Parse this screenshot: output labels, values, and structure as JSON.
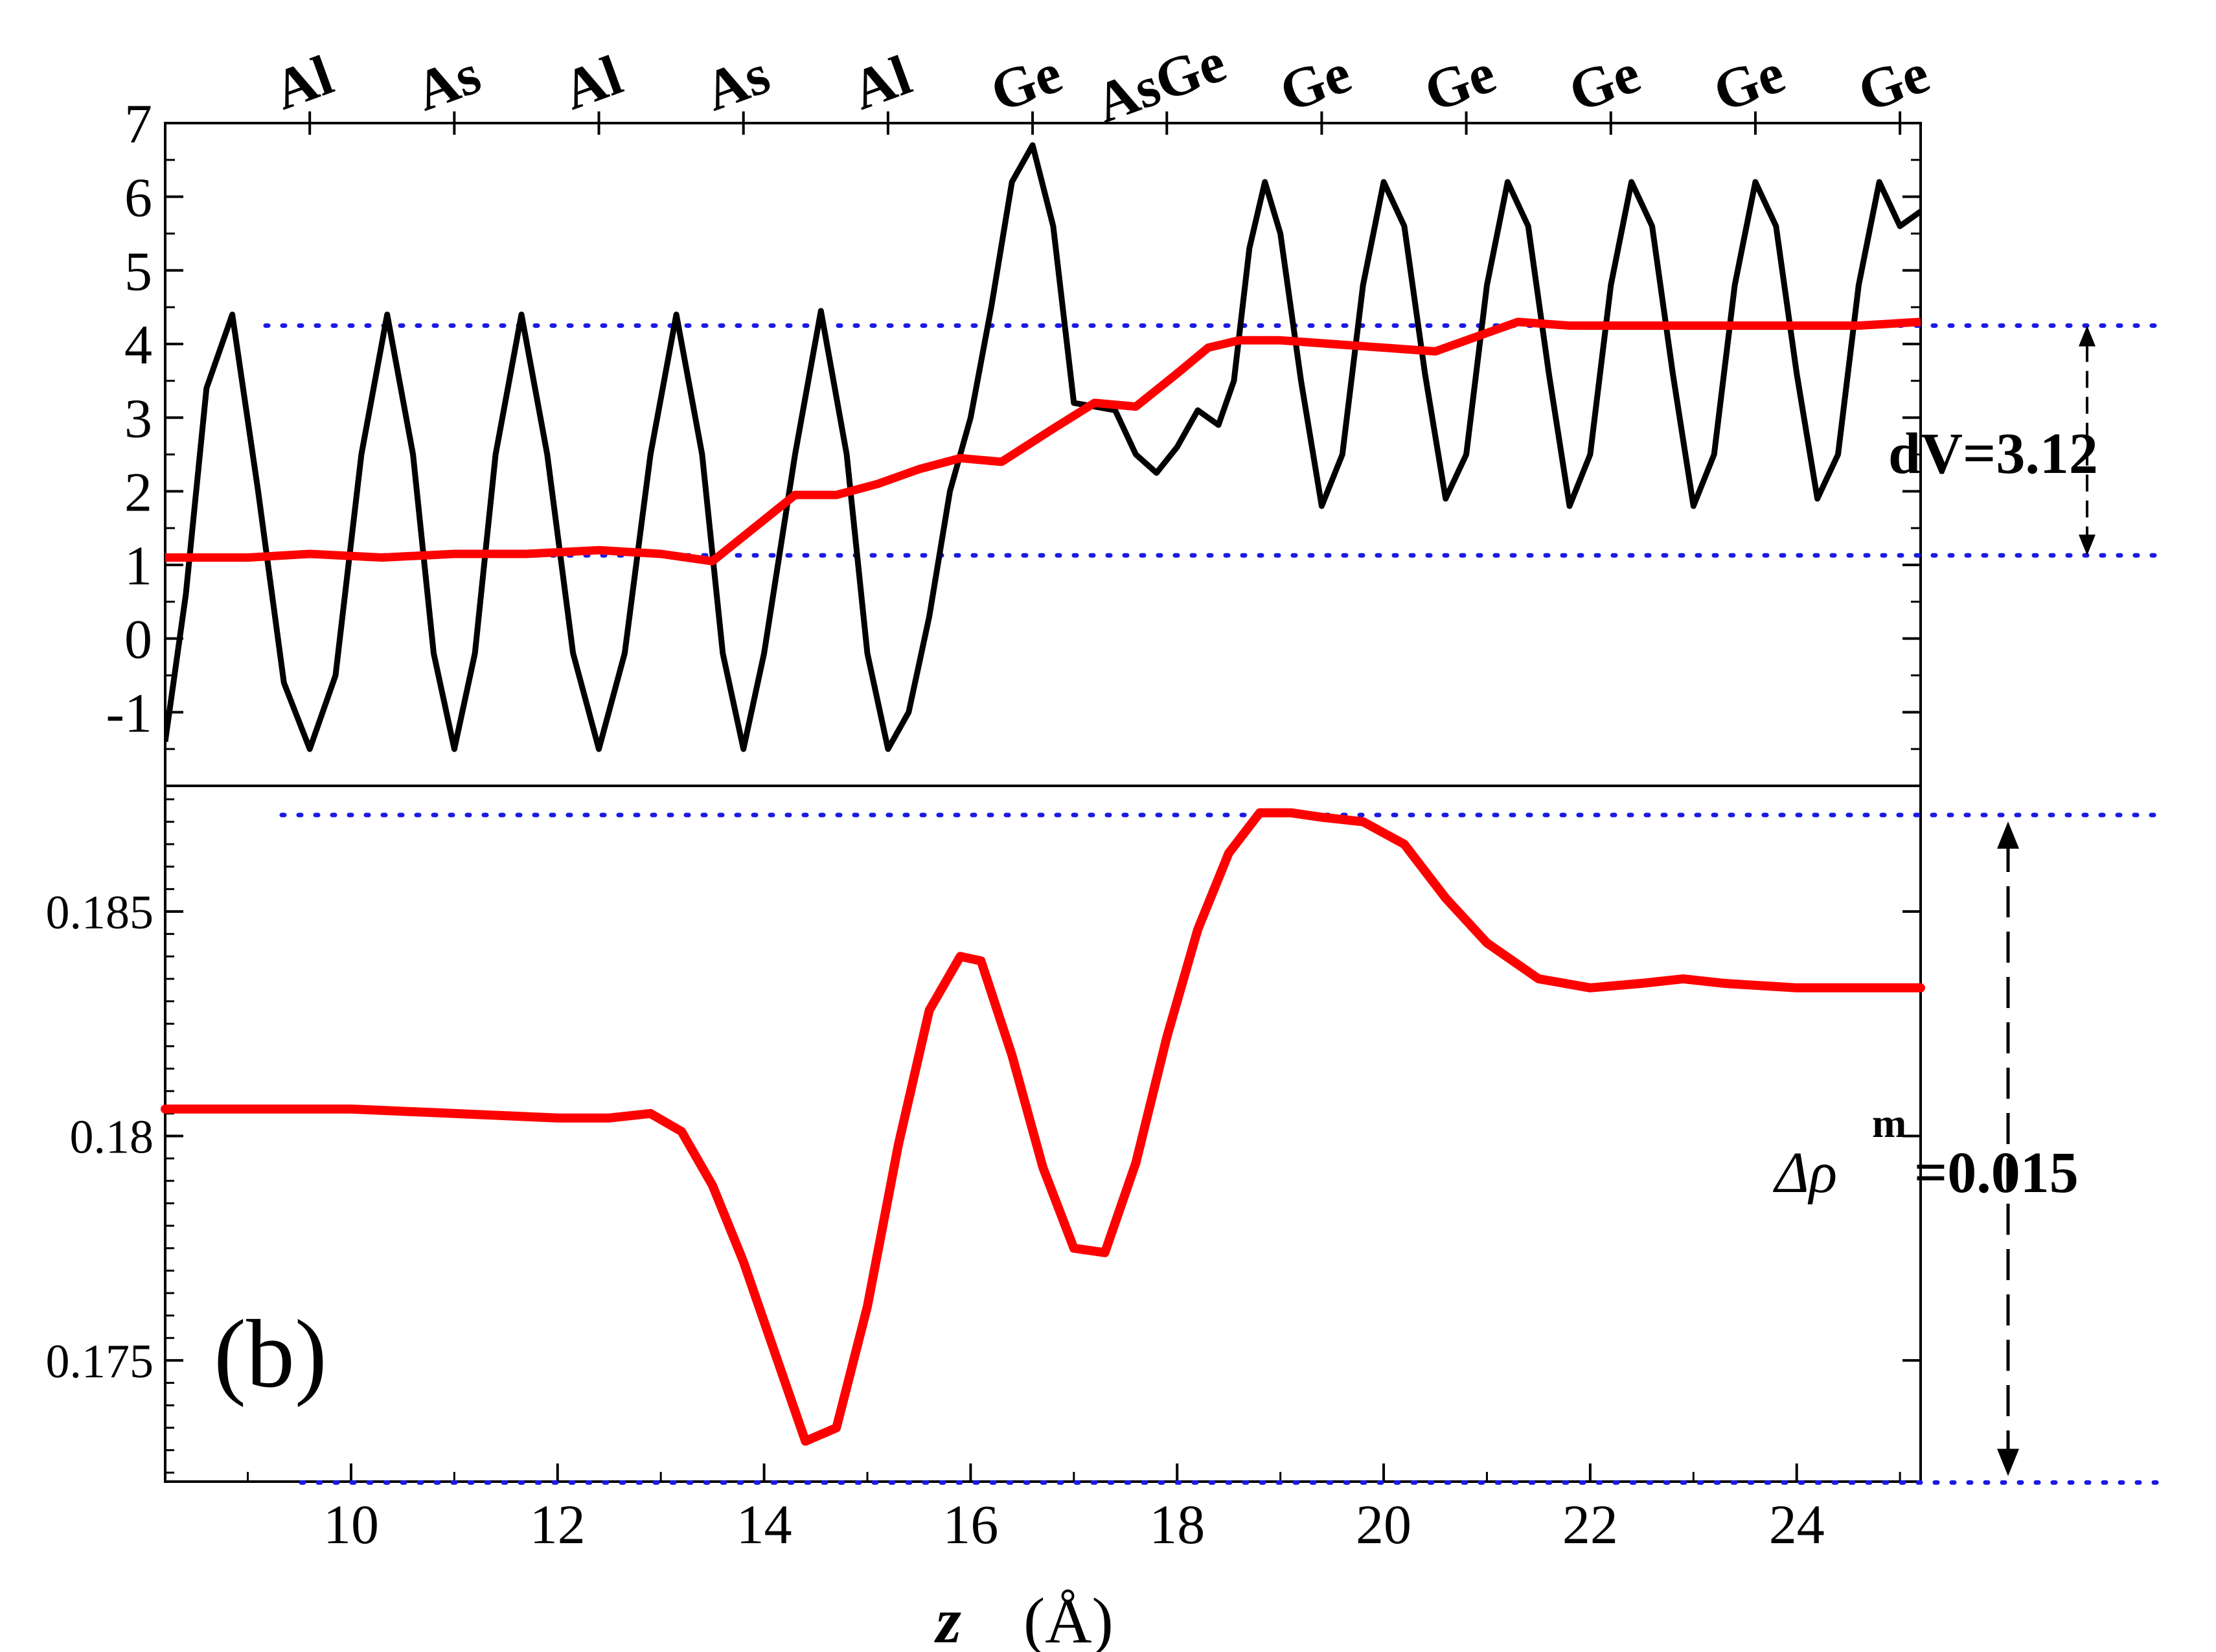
{
  "chart_data": [
    {
      "type": "line",
      "panel": "top",
      "xlim": [
        8.2,
        25.2
      ],
      "ylim": [
        -2,
        7
      ],
      "yticks": [
        7,
        6,
        5,
        4,
        3,
        2,
        1,
        0,
        -1
      ],
      "atom_labels": [
        {
          "z": 9.6,
          "label": "Al"
        },
        {
          "z": 11.0,
          "label": "As"
        },
        {
          "z": 12.4,
          "label": "Al"
        },
        {
          "z": 13.8,
          "label": "As"
        },
        {
          "z": 15.2,
          "label": "Al"
        },
        {
          "z": 16.6,
          "label": "Ge"
        },
        {
          "z": 17.9,
          "label": "AsGe"
        },
        {
          "z": 19.4,
          "label": "Ge"
        },
        {
          "z": 20.8,
          "label": "Ge"
        },
        {
          "z": 22.2,
          "label": "Ge"
        },
        {
          "z": 23.6,
          "label": "Ge"
        },
        {
          "z": 25.0,
          "label": "Ge"
        }
      ],
      "series": [
        {
          "color": "#000000",
          "x": [
            8.2,
            8.4,
            8.6,
            8.85,
            9.1,
            9.35,
            9.6,
            9.85,
            10.1,
            10.35,
            10.6,
            10.8,
            11.0,
            11.2,
            11.4,
            11.65,
            11.9,
            12.15,
            12.4,
            12.65,
            12.9,
            13.15,
            13.4,
            13.6,
            13.8,
            14.0,
            14.3,
            14.55,
            14.8,
            15.0,
            15.2,
            15.4,
            15.6,
            15.8,
            16.0,
            16.2,
            16.4,
            16.6,
            16.8,
            17.0,
            17.2,
            17.4,
            17.6,
            17.8,
            18.0,
            18.2,
            18.4,
            18.55,
            18.7,
            18.85,
            19.0,
            19.2,
            19.4,
            19.6,
            19.8,
            20.0,
            20.2,
            20.4,
            20.6,
            20.8,
            21.0,
            21.2,
            21.4,
            21.6,
            21.8,
            22.0,
            22.2,
            22.4,
            22.6,
            22.8,
            23.0,
            23.2,
            23.4,
            23.6,
            23.8,
            24.0,
            24.2,
            24.4,
            24.6,
            24.8,
            25.0,
            25.2
          ],
          "y": [
            -1.4,
            0.6,
            3.4,
            4.4,
            2.0,
            -0.6,
            -1.5,
            -0.5,
            2.5,
            4.4,
            2.5,
            -0.2,
            -1.5,
            -0.2,
            2.5,
            4.4,
            2.5,
            -0.2,
            -1.5,
            -0.2,
            2.5,
            4.4,
            2.5,
            -0.2,
            -1.5,
            -0.2,
            2.5,
            4.45,
            2.5,
            -0.2,
            -1.5,
            -1.0,
            0.3,
            2.0,
            3.0,
            4.5,
            6.2,
            6.7,
            5.6,
            3.2,
            3.15,
            3.1,
            2.5,
            2.25,
            2.6,
            3.1,
            2.9,
            3.5,
            5.3,
            6.2,
            5.5,
            3.5,
            1.8,
            2.5,
            4.8,
            6.2,
            5.6,
            3.6,
            1.9,
            2.5,
            4.8,
            6.2,
            5.6,
            3.6,
            1.8,
            2.5,
            4.8,
            6.2,
            5.6,
            3.6,
            1.8,
            2.5,
            4.8,
            6.2,
            5.6,
            3.6,
            1.9,
            2.5,
            4.8,
            6.2,
            5.6,
            5.8
          ]
        },
        {
          "color": "#ff0000",
          "x": [
            8.2,
            9.0,
            9.6,
            10.3,
            11.0,
            11.7,
            12.4,
            13.0,
            13.5,
            13.9,
            14.3,
            14.7,
            15.1,
            15.5,
            15.9,
            16.3,
            16.8,
            17.2,
            17.6,
            18.0,
            18.3,
            18.6,
            19.0,
            19.5,
            20.0,
            20.5,
            20.9,
            21.3,
            21.8,
            22.5,
            23.2,
            24.0,
            24.6,
            25.2
          ],
          "y": [
            1.1,
            1.1,
            1.15,
            1.1,
            1.15,
            1.15,
            1.2,
            1.15,
            1.05,
            1.5,
            1.95,
            1.95,
            2.1,
            2.3,
            2.45,
            2.4,
            2.85,
            3.2,
            3.15,
            3.6,
            3.95,
            4.05,
            4.05,
            4.0,
            3.95,
            3.9,
            4.1,
            4.3,
            4.25,
            4.25,
            4.25,
            4.25,
            4.25,
            4.3
          ]
        }
      ],
      "reference_lines_y": [
        4.25,
        1.13
      ],
      "annotation": "dV=3.12"
    },
    {
      "type": "line",
      "panel": "bottom",
      "xlim": [
        8.2,
        25.2
      ],
      "ylim": [
        0.1723,
        0.1878
      ],
      "xticks": [
        10,
        12,
        14,
        16,
        18,
        20,
        22,
        24
      ],
      "yticks": [
        0.185,
        0.18,
        0.175
      ],
      "ytick_labels": [
        "0.185",
        "0.18",
        "0.175"
      ],
      "xlabel_var": "z",
      "xlabel_unit": "(Å)",
      "panel_label": "(b)",
      "series": [
        {
          "color": "#ff0000",
          "x": [
            8.2,
            9.0,
            10.0,
            11.0,
            12.0,
            12.5,
            12.9,
            13.2,
            13.5,
            13.8,
            14.1,
            14.4,
            14.7,
            15.0,
            15.3,
            15.6,
            15.9,
            16.1,
            16.4,
            16.7,
            17.0,
            17.3,
            17.6,
            17.9,
            18.2,
            18.5,
            18.8,
            19.1,
            19.4,
            19.8,
            20.2,
            20.6,
            21.0,
            21.5,
            22.0,
            22.5,
            22.9,
            23.3,
            24.0,
            25.2
          ],
          "y": [
            0.1806,
            0.1806,
            0.1806,
            0.1805,
            0.1804,
            0.1804,
            0.1805,
            0.1801,
            0.1789,
            0.1772,
            0.1752,
            0.1732,
            0.1735,
            0.1762,
            0.1798,
            0.1828,
            0.184,
            0.1839,
            0.1818,
            0.1793,
            0.1775,
            0.1774,
            0.1794,
            0.1822,
            0.1846,
            0.1863,
            0.1872,
            0.1872,
            0.1871,
            0.187,
            0.1865,
            0.1853,
            0.1843,
            0.1835,
            0.1833,
            0.1834,
            0.1835,
            0.1834,
            0.1833,
            0.1833
          ]
        }
      ],
      "reference_lines_y": [
        0.18715,
        0.17228
      ],
      "annotation_symbol": "Δρ",
      "annotation_superscript": "m",
      "annotation_value": "=0.015"
    }
  ]
}
